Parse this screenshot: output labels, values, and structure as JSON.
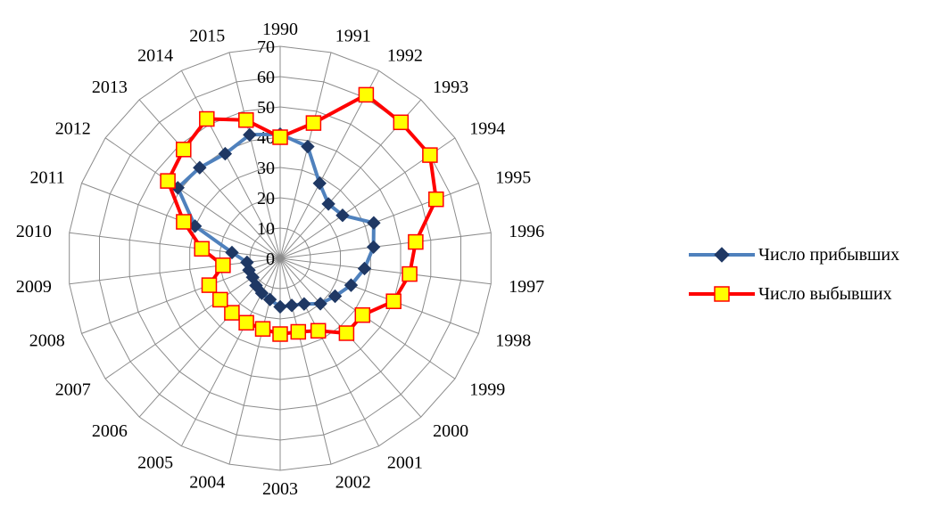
{
  "chart_data": {
    "type": "radar",
    "title": "",
    "categories": [
      "1990",
      "1991",
      "1992",
      "1993",
      "1994",
      "1995",
      "1996",
      "1997",
      "1998",
      "1999",
      "2000",
      "2001",
      "2002",
      "2003",
      "2004",
      "2005",
      "2006",
      "2007",
      "2008",
      "2009",
      "2010",
      "2011",
      "2012",
      "2013",
      "2014",
      "2015"
    ],
    "radial_ticks": [
      "0",
      "10",
      "20",
      "30",
      "40",
      "50",
      "60",
      "70"
    ],
    "rmax": 70,
    "grid": true,
    "legend_position": "right",
    "series": [
      {
        "name": "Число прибывших",
        "color": "#4f81bd",
        "marker": "diamond",
        "marker_fill": "#1f3864",
        "values": [
          41,
          38,
          28,
          24,
          25,
          33,
          31,
          28,
          25,
          22,
          20,
          17,
          16,
          16,
          14,
          13,
          12,
          11,
          11,
          11,
          16,
          30,
          41,
          40,
          39,
          42
        ]
      },
      {
        "name": "Число выбывших",
        "color": "#ff0000",
        "marker": "square",
        "marker_fill": "#ffff00",
        "values": [
          40,
          46,
          61,
          60,
          60,
          55,
          45,
          43,
          40,
          33,
          33,
          27,
          25,
          25,
          24,
          24,
          24,
          24,
          25,
          19,
          26,
          34,
          45,
          48,
          52,
          47
        ]
      }
    ]
  }
}
